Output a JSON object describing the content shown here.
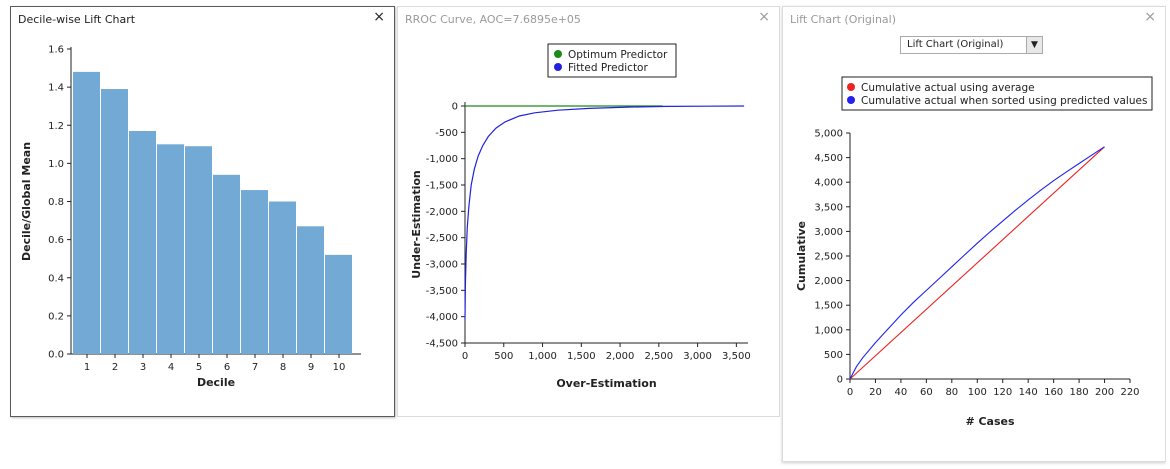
{
  "windows": {
    "lift": {
      "title": "Decile-wise Lift Chart",
      "close": "×"
    },
    "rroc": {
      "title": "RROC Curve, AOC=7.6895e+05",
      "close": "×"
    },
    "liftOrig": {
      "title": "Lift Chart (Original)",
      "close": "×",
      "dropdown": "Lift Chart (Original)",
      "dropdown_icon": "chevron-down-icon"
    }
  },
  "chart_data": [
    {
      "type": "bar",
      "title": "",
      "xlabel": "Decile",
      "ylabel": "Decile/Global Mean",
      "categories": [
        "1",
        "2",
        "3",
        "4",
        "5",
        "6",
        "7",
        "8",
        "9",
        "10"
      ],
      "values": [
        1.48,
        1.39,
        1.17,
        1.1,
        1.09,
        0.94,
        0.86,
        0.8,
        0.67,
        0.52
      ],
      "ylim": [
        0,
        1.6
      ],
      "yticks": [
        "0.0",
        "0.2",
        "0.4",
        "0.6",
        "0.8",
        "1.0",
        "1.2",
        "1.4",
        "1.6"
      ],
      "color": "#73a9d5"
    },
    {
      "type": "line",
      "xlabel": "Over-Estimation",
      "ylabel": "Under-Estimation",
      "xlim": [
        0,
        3650
      ],
      "ylim": [
        -4500,
        0
      ],
      "xticks": [
        "0",
        "500",
        "1,000",
        "1,500",
        "2,000",
        "2,500",
        "3,000",
        "3,500"
      ],
      "yticks": [
        "0",
        "-500",
        "-1,000",
        "-1,500",
        "-2,000",
        "-2,500",
        "-3,000",
        "-3,500",
        "-4,000",
        "-4,500"
      ],
      "legend_position": "top",
      "series": [
        {
          "name": "Optimum Predictor",
          "color": "#1a8a1a",
          "x": [
            0,
            2550
          ],
          "y": [
            0,
            0
          ]
        },
        {
          "name": "Fitted Predictor",
          "color": "#2222dd",
          "x": [
            0,
            5,
            15,
            30,
            50,
            80,
            120,
            170,
            230,
            300,
            400,
            520,
            700,
            900,
            1200,
            1600,
            2100,
            2600,
            3100,
            3600
          ],
          "y": [
            -4050,
            -3400,
            -2800,
            -2300,
            -1900,
            -1500,
            -1200,
            -950,
            -750,
            -580,
            -420,
            -300,
            -190,
            -130,
            -80,
            -45,
            -20,
            -8,
            -3,
            0
          ]
        }
      ]
    },
    {
      "type": "line",
      "xlabel": "# Cases",
      "ylabel": "Cumulative",
      "xlim": [
        0,
        220
      ],
      "ylim": [
        0,
        5000
      ],
      "xticks": [
        "0",
        "20",
        "40",
        "60",
        "80",
        "100",
        "120",
        "140",
        "160",
        "180",
        "200",
        "220"
      ],
      "yticks": [
        "0",
        "500",
        "1,000",
        "1,500",
        "2,000",
        "2,500",
        "3,000",
        "3,500",
        "4,000",
        "4,500",
        "5,000"
      ],
      "legend_position": "top",
      "series": [
        {
          "name": "Cumulative actual using average",
          "color": "#ee2222",
          "x": [
            0,
            200
          ],
          "y": [
            0,
            4720
          ]
        },
        {
          "name": "Cumulative actual when sorted using predicted values",
          "color": "#2222ee",
          "x": [
            0,
            5,
            10,
            20,
            30,
            40,
            50,
            60,
            70,
            80,
            90,
            100,
            110,
            120,
            130,
            140,
            150,
            160,
            170,
            180,
            190,
            200
          ],
          "y": [
            0,
            250,
            430,
            740,
            1020,
            1300,
            1560,
            1800,
            2040,
            2280,
            2520,
            2760,
            2990,
            3210,
            3430,
            3640,
            3840,
            4030,
            4210,
            4380,
            4550,
            4720
          ]
        }
      ]
    }
  ]
}
